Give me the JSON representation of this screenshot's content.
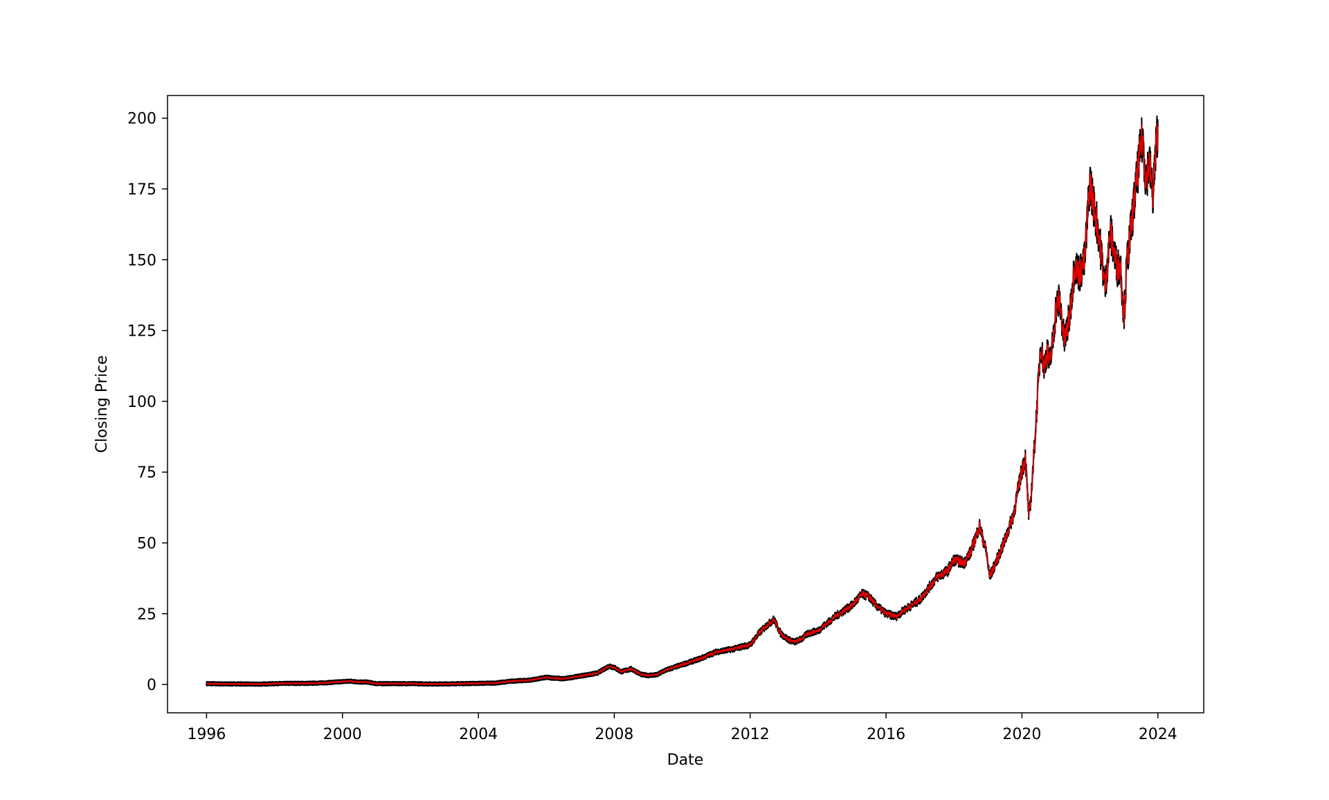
{
  "chart_data": {
    "type": "line",
    "title": "",
    "xlabel": "Date",
    "ylabel": "Closing Price",
    "xlim": [
      1994.85,
      2025.35
    ],
    "ylim": [
      -10,
      208
    ],
    "grid": false,
    "legend": "none",
    "x_ticks": [
      1996,
      2000,
      2004,
      2008,
      2012,
      2016,
      2020,
      2024
    ],
    "x_tick_labels": [
      "1996",
      "2000",
      "2004",
      "2008",
      "2012",
      "2016",
      "2020",
      "2024"
    ],
    "y_ticks": [
      0,
      25,
      50,
      75,
      100,
      125,
      150,
      175,
      200
    ],
    "y_tick_labels": [
      "0",
      "25",
      "50",
      "75",
      "100",
      "125",
      "150",
      "175",
      "200"
    ],
    "colors": {
      "fill": "#e00000",
      "line": "#000000",
      "frame": "#000000"
    },
    "series": [
      {
        "x": [
          1996.0,
          1996.5,
          1997.0,
          1997.5,
          1998.0,
          1998.5,
          1999.0,
          1999.5,
          2000.0,
          2000.25,
          2000.5,
          2000.7,
          2001.0,
          2001.5,
          2002.0,
          2002.5,
          2003.0,
          2003.5,
          2004.0,
          2004.5,
          2005.0,
          2005.5,
          2006.0,
          2006.3,
          2006.5,
          2007.0,
          2007.5,
          2007.85,
          2008.0,
          2008.2,
          2008.5,
          2008.8,
          2009.0,
          2009.25,
          2009.5,
          2010.0,
          2010.5,
          2011.0,
          2011.5,
          2011.8,
          2012.0,
          2012.25,
          2012.5,
          2012.7,
          2012.9,
          2013.1,
          2013.3,
          2013.5,
          2013.7,
          2014.0,
          2014.5,
          2015.0,
          2015.3,
          2015.5,
          2015.7,
          2016.0,
          2016.3,
          2016.5,
          2017.0,
          2017.5,
          2017.8,
          2018.0,
          2018.3,
          2018.5,
          2018.75,
          2018.95,
          2019.05,
          2019.3,
          2019.5,
          2019.75,
          2020.0,
          2020.1,
          2020.2,
          2020.25,
          2020.4,
          2020.55,
          2020.65,
          2020.75,
          2020.8,
          2020.9,
          2021.0,
          2021.1,
          2021.25,
          2021.4,
          2021.55,
          2021.7,
          2021.85,
          2022.0,
          2022.1,
          2022.25,
          2022.45,
          2022.6,
          2022.8,
          2022.9,
          2023.0,
          2023.1,
          2023.25,
          2023.5,
          2023.55,
          2023.65,
          2023.75,
          2023.85,
          2023.95,
          2024.0
        ],
        "y": [
          0.3,
          0.2,
          0.2,
          0.1,
          0.3,
          0.4,
          0.4,
          0.6,
          1.0,
          1.2,
          0.8,
          0.9,
          0.3,
          0.3,
          0.3,
          0.2,
          0.2,
          0.3,
          0.4,
          0.5,
          1.2,
          1.5,
          2.5,
          2.2,
          2.0,
          3.0,
          4.0,
          6.5,
          6.0,
          4.5,
          5.5,
          3.5,
          3.2,
          3.4,
          5.0,
          7.0,
          9.0,
          11.5,
          12.5,
          13.5,
          14.0,
          18.0,
          21.0,
          23.0,
          18.0,
          16.0,
          15.0,
          16.0,
          18.0,
          19.0,
          24.0,
          28.0,
          32.0,
          31.0,
          28.0,
          25.0,
          24.0,
          26.0,
          30.0,
          38.0,
          40.0,
          44.0,
          43.0,
          47.0,
          56.0,
          47.0,
          38.0,
          45.0,
          51.0,
          60.0,
          76.0,
          80.0,
          60.0,
          63.0,
          90.0,
          120.0,
          112.0,
          118.0,
          113.0,
          120.0,
          133.0,
          136.0,
          121.0,
          130.0,
          148.0,
          145.0,
          150.0,
          178.0,
          170.0,
          160.0,
          140.0,
          160.0,
          147.0,
          148.0,
          130.0,
          150.0,
          165.0,
          190.0,
          193.0,
          178.0,
          185.0,
          172.0,
          190.0,
          197.0
        ]
      }
    ]
  }
}
